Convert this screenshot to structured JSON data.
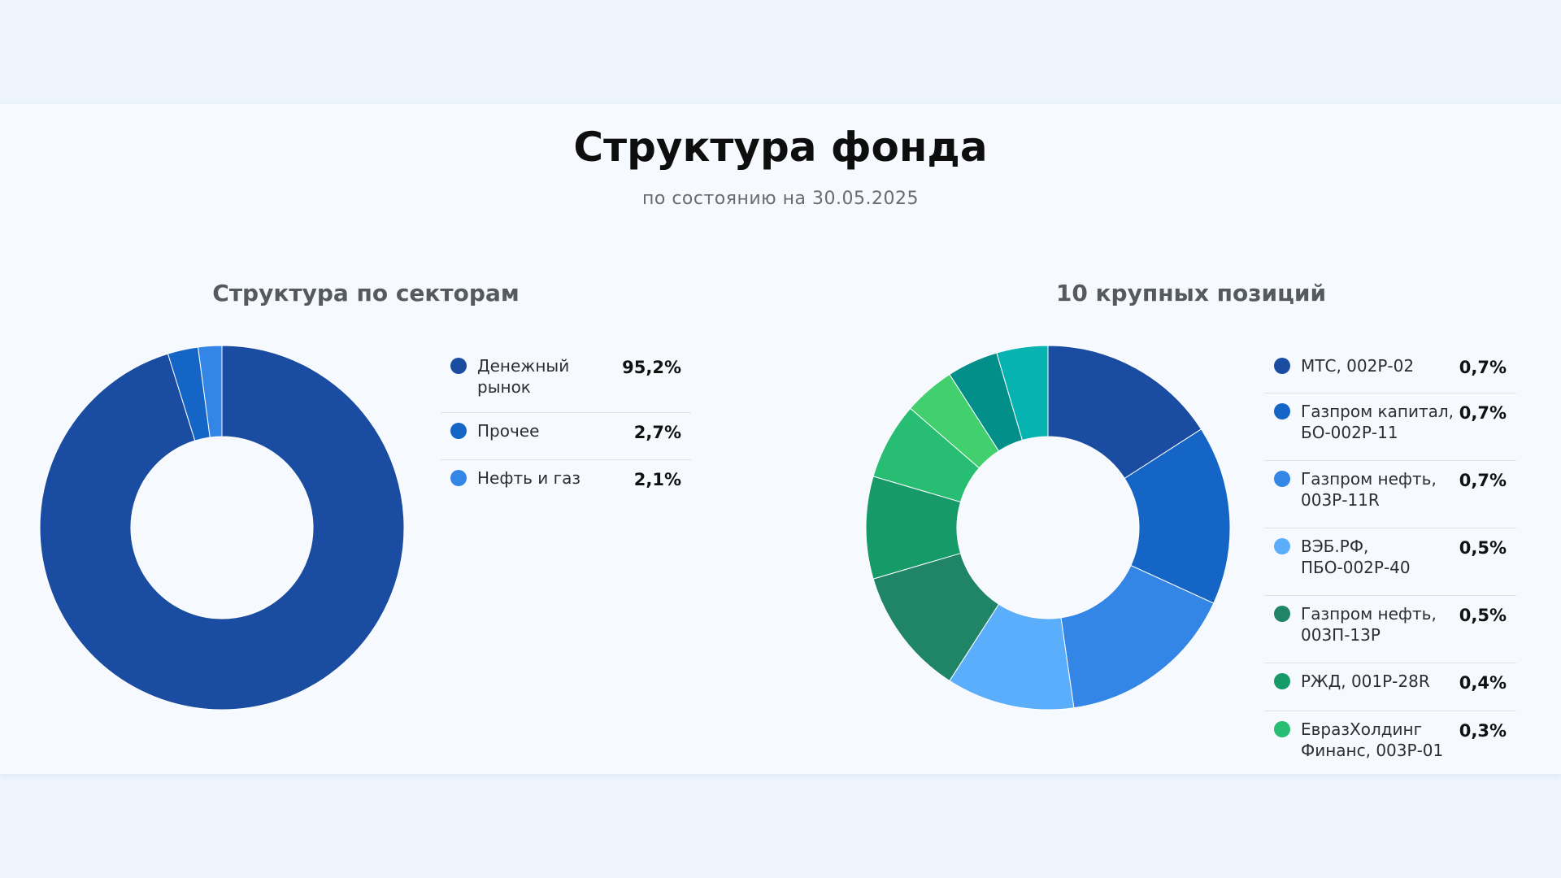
{
  "page": {
    "title": "Структура фонда",
    "subtitle": "по состоянию на 30.05.2025"
  },
  "chart_data": [
    {
      "type": "pie",
      "title": "Структура по секторам",
      "categories": [
        "Денежный рынок",
        "Прочее",
        "Нефть и газ"
      ],
      "value_labels": [
        "95,2%",
        "2,7%",
        "2,1%"
      ],
      "values": [
        95.2,
        2.7,
        2.1
      ],
      "colors": [
        "#1a4da1",
        "#1565c6",
        "#3486e6"
      ],
      "legend": "right"
    },
    {
      "type": "pie",
      "title": "10 крупных позиций",
      "categories": [
        "МТС, 002Р-02",
        "Газпром капитал, БО-002Р-11",
        "Газпром нефть, 003Р-11R",
        "ВЭБ.РФ, ПБО-002Р-40",
        "Газпром нефть, 003П-13Р",
        "РЖД, 001Р-28R",
        "ЕвразХолдинг Финанс, 003Р-01"
      ],
      "value_labels": [
        "0,7%",
        "0,7%",
        "0,7%",
        "0,5%",
        "0,5%",
        "0,4%",
        "0,3%"
      ],
      "values": [
        0.7,
        0.7,
        0.7,
        0.5,
        0.5,
        0.4,
        0.3
      ],
      "colors": [
        "#1a4da1",
        "#1565c6",
        "#3486e6",
        "#5aaefc",
        "#208567",
        "#169a67",
        "#27bd72"
      ],
      "extra_slices": {
        "values": [
          0.2,
          0.2,
          0.2
        ],
        "colors": [
          "#42cf6d",
          "#028f8a",
          "#06b3b1"
        ]
      },
      "legend": "right"
    }
  ]
}
